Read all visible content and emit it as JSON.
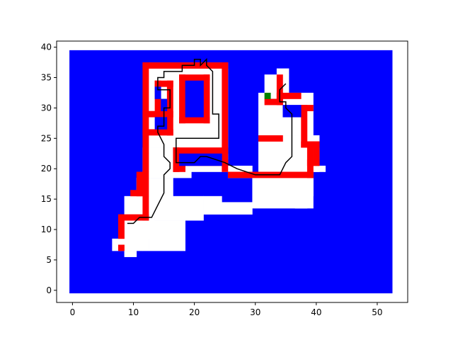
{
  "chart_data": {
    "type": "heatmap",
    "title": "",
    "xlabel": "",
    "ylabel": "",
    "xlim": [
      -2.6,
      55
    ],
    "ylim": [
      -2,
      41
    ],
    "x_ticks": [
      "0",
      "10",
      "20",
      "30",
      "40",
      "50"
    ],
    "y_ticks": [
      "0",
      "5",
      "10",
      "15",
      "20",
      "25",
      "30",
      "35",
      "40"
    ],
    "grid": false,
    "legend": "none",
    "colors": {
      "background": "#0000ff",
      "land": "#ffffff",
      "wall": "#ff0000",
      "goal": "#008000",
      "path": "#000000"
    },
    "background_extent": {
      "x": [
        0,
        52
      ],
      "y": [
        0,
        39
      ]
    },
    "regions": [
      {
        "label": "land",
        "rects": [
          [
            13,
            24,
            26,
            38
          ],
          [
            16,
            20,
            26,
            24
          ],
          [
            12,
            19,
            20,
            24
          ],
          [
            11,
            16,
            17,
            19
          ],
          [
            9,
            13,
            16,
            16
          ],
          [
            9,
            9,
            14,
            13
          ],
          [
            7,
            7,
            12,
            9
          ],
          [
            9,
            6,
            11,
            7
          ],
          [
            12,
            7,
            13,
            9
          ],
          [
            13,
            7,
            19,
            12
          ],
          [
            14,
            12,
            22,
            16
          ],
          [
            22,
            13,
            25,
            16
          ],
          [
            25,
            13,
            30,
            15
          ],
          [
            30,
            14,
            40,
            20
          ],
          [
            37,
            14,
            39,
            15
          ],
          [
            39,
            16,
            40,
            19
          ],
          [
            40,
            20,
            42,
            21
          ],
          [
            26,
            19,
            30,
            21
          ],
          [
            31,
            20,
            41,
            26
          ],
          [
            31,
            26,
            40,
            33
          ],
          [
            32,
            33,
            36,
            36
          ],
          [
            34,
            36,
            36,
            37
          ],
          [
            33,
            26,
            38,
            32
          ]
        ]
      },
      {
        "label": "wall",
        "rects": [
          [
            12,
            23,
            13,
            38
          ],
          [
            12,
            37,
            26,
            38
          ],
          [
            25,
            20,
            26,
            38
          ],
          [
            12,
            26,
            17,
            27
          ],
          [
            12,
            29,
            17,
            30
          ],
          [
            14,
            30,
            15,
            35
          ],
          [
            16,
            26,
            17,
            35
          ],
          [
            14,
            34,
            17,
            35
          ],
          [
            18,
            28,
            19,
            36
          ],
          [
            18,
            35,
            23,
            36
          ],
          [
            22,
            28,
            23,
            36
          ],
          [
            18,
            28,
            23,
            29
          ],
          [
            17,
            23,
            26,
            24
          ],
          [
            17,
            20,
            18,
            24
          ],
          [
            17,
            20,
            19,
            21
          ],
          [
            19,
            21,
            26,
            22
          ],
          [
            26,
            19,
            40,
            20
          ],
          [
            39,
            19,
            40,
            25
          ],
          [
            39,
            21,
            41,
            22
          ],
          [
            40,
            21,
            41,
            25
          ],
          [
            38,
            24,
            41,
            25
          ],
          [
            38,
            24,
            39,
            31
          ],
          [
            38,
            30,
            40,
            31
          ],
          [
            31,
            25,
            35,
            26
          ],
          [
            32,
            31,
            35,
            32
          ],
          [
            34,
            31,
            35,
            36
          ],
          [
            34,
            32,
            38,
            33
          ],
          [
            12,
            20,
            13,
            23
          ],
          [
            11,
            16,
            13,
            20
          ],
          [
            10,
            16,
            12,
            17
          ],
          [
            8,
            12,
            13,
            13
          ],
          [
            12,
            12,
            13,
            16
          ],
          [
            8,
            9,
            9,
            13
          ],
          [
            8,
            7,
            9,
            8
          ]
        ]
      },
      {
        "label": "background",
        "rects": [
          [
            14,
            32,
            15,
            34
          ],
          [
            15,
            30,
            16,
            32
          ],
          [
            14,
            27,
            16,
            29
          ],
          [
            19,
            29,
            22,
            35
          ],
          [
            18,
            21,
            25,
            23
          ],
          [
            35,
            29,
            38,
            31
          ]
        ]
      },
      {
        "label": "goal",
        "rects": [
          [
            32,
            32,
            33,
            33
          ]
        ]
      }
    ],
    "path": {
      "x": [
        9,
        10,
        10,
        11,
        13,
        14,
        14,
        15,
        15,
        16,
        16,
        15,
        15,
        14,
        14,
        15,
        15,
        16,
        16,
        14,
        14,
        15,
        15,
        18,
        18,
        20,
        20,
        21,
        21,
        22,
        22,
        23,
        23,
        23,
        24,
        24,
        17,
        17,
        20,
        21,
        22,
        25,
        27,
        30,
        34,
        35,
        36,
        36,
        35,
        35,
        34,
        34,
        35
      ],
      "y": [
        11,
        11,
        11,
        12,
        12,
        14,
        14,
        16,
        19,
        20,
        21,
        22,
        24,
        26,
        27,
        27,
        30,
        30,
        33,
        33,
        35,
        35,
        36,
        36,
        37,
        37,
        38,
        38,
        37,
        38,
        37,
        36,
        32,
        29,
        29,
        25,
        25,
        21,
        21,
        22,
        22,
        21,
        20,
        19,
        19,
        21,
        22,
        29,
        30,
        31,
        31,
        33,
        34
      ]
    }
  }
}
